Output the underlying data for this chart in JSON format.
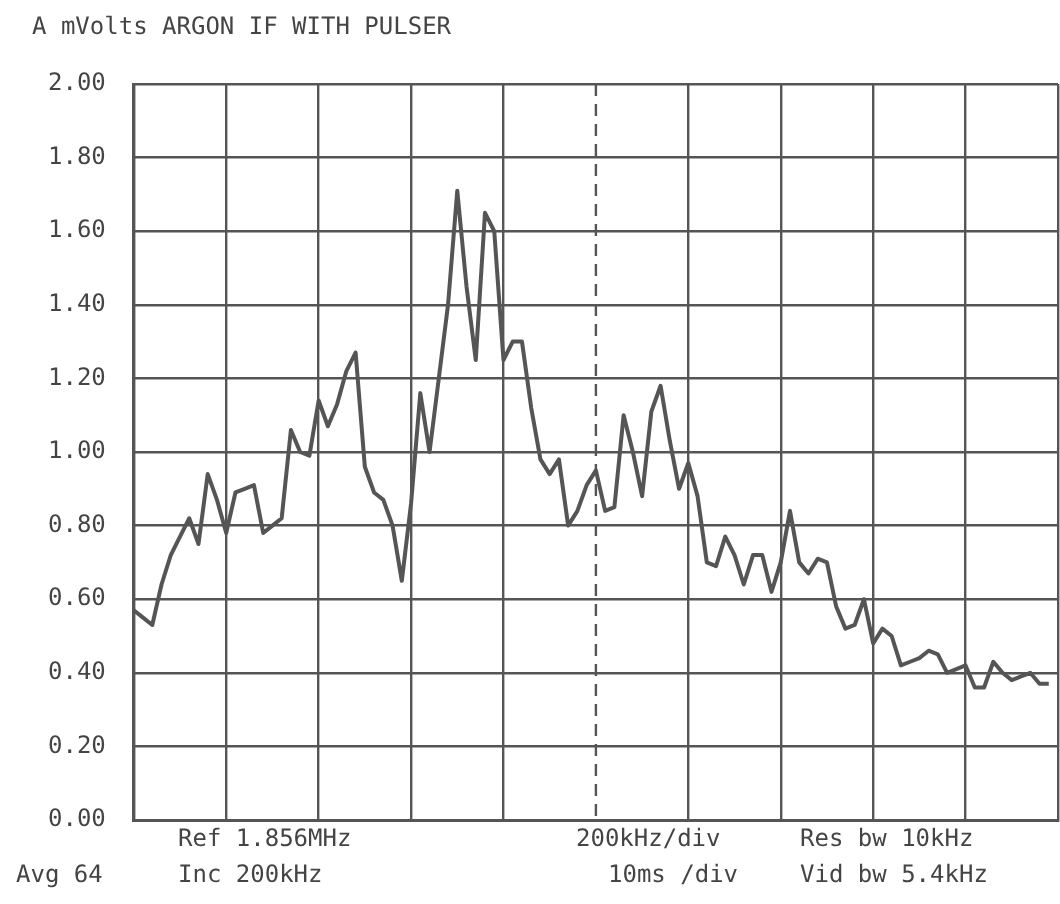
{
  "chart_data": {
    "type": "line",
    "title": "A mVolts ARGON IF WITH PULSER",
    "categories": [
      null,
      null,
      null,
      null,
      null,
      null,
      null,
      null,
      null,
      null,
      null,
      null,
      null,
      null,
      null,
      null,
      null,
      null,
      null,
      null,
      null,
      null,
      null,
      null,
      null,
      null,
      null,
      null,
      null,
      null,
      null,
      null,
      null,
      null,
      null,
      null,
      null,
      null,
      null,
      null,
      null,
      null,
      null,
      null,
      null,
      null,
      null,
      null,
      null,
      null,
      null,
      null,
      null,
      null,
      null,
      null,
      null,
      null,
      null,
      null,
      null,
      null,
      null,
      null,
      null,
      null,
      null,
      null,
      null,
      null,
      null,
      null,
      null,
      null,
      null,
      null,
      null,
      null,
      null,
      null,
      null,
      null,
      null,
      null,
      null,
      null,
      null,
      null,
      null,
      null,
      null,
      null,
      null,
      null,
      null,
      null,
      null,
      null,
      null,
      null,
      null
    ],
    "series": [
      {
        "color": "#555555",
        "values": [
          0.57,
          0.55,
          0.53,
          0.64,
          0.72,
          0.77,
          0.82,
          0.75,
          0.94,
          0.87,
          0.78,
          0.89,
          0.9,
          0.91,
          0.78,
          0.8,
          0.82,
          1.06,
          1.0,
          0.99,
          1.14,
          1.07,
          1.13,
          1.22,
          1.27,
          0.96,
          0.89,
          0.87,
          0.8,
          0.65,
          0.86,
          1.16,
          1.0,
          1.2,
          1.4,
          1.71,
          1.45,
          1.25,
          1.65,
          1.6,
          1.25,
          1.3,
          1.3,
          1.12,
          0.98,
          0.94,
          0.98,
          0.8,
          0.84,
          0.91,
          0.95,
          0.84,
          0.85,
          1.1,
          1.0,
          0.88,
          1.11,
          1.18,
          1.03,
          0.9,
          0.97,
          0.88,
          0.7,
          0.69,
          0.77,
          0.72,
          0.64,
          0.72,
          0.72,
          0.62,
          0.7,
          0.84,
          0.7,
          0.67,
          0.71,
          0.7,
          0.58,
          0.52,
          0.53,
          0.6,
          0.48,
          0.52,
          0.5,
          0.42,
          0.43,
          0.44,
          0.46,
          0.45,
          0.4,
          0.41,
          0.42,
          0.36,
          0.36,
          0.43,
          0.4,
          0.38,
          0.39,
          0.4,
          0.37,
          0.37,
          null
        ]
      }
    ],
    "ylim": [
      0,
      2
    ],
    "yticks": [
      {
        "value": 0,
        "label": "0.00"
      },
      {
        "value": 0.2,
        "label": "0.20"
      },
      {
        "value": 0.4,
        "label": "0.40"
      },
      {
        "value": 0.6,
        "label": "0.60"
      },
      {
        "value": 0.8,
        "label": "0.80"
      },
      {
        "value": 1,
        "label": "1.00"
      },
      {
        "value": 1.2,
        "label": "1.20"
      },
      {
        "value": 1.4,
        "label": "1.40"
      },
      {
        "value": 1.6,
        "label": "1.60"
      },
      {
        "value": 1.8,
        "label": "1.80"
      },
      {
        "value": 2,
        "label": "2.00"
      }
    ],
    "tick_labels": "y",
    "grid": true,
    "marker": "none",
    "line_style": "solid",
    "legend": false,
    "annotations": [
      "Ref 1.856MHz",
      "200kHz/div",
      "Res bw 10kHz",
      "Avg 64",
      "Inc 200kHz",
      "10ms /div",
      "Vid bw 5.4kHz"
    ]
  }
}
